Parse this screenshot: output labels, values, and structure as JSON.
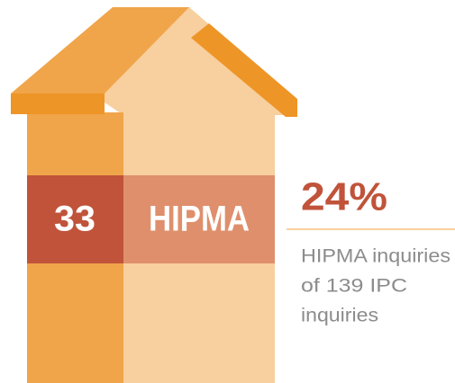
{
  "count": "33",
  "label": "HIPMA",
  "percent": "24%",
  "description": [
    "HIPMA inquiries",
    "of 139 IPC",
    "inquiries"
  ]
}
